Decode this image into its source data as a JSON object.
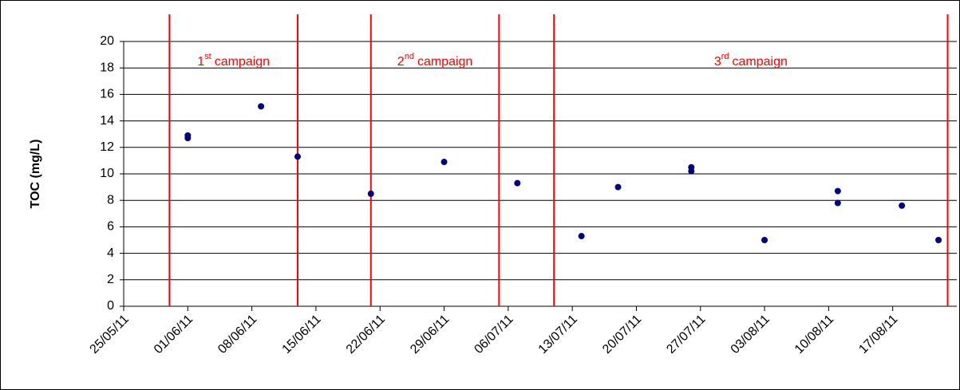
{
  "chart_data": {
    "type": "scatter",
    "y_label": "TOC (mg/L)",
    "ylim": [
      0,
      20
    ],
    "yticks": [
      0,
      2,
      4,
      6,
      8,
      10,
      12,
      14,
      16,
      18,
      20
    ],
    "xlim": [
      "25/05/11",
      "24/08/11"
    ],
    "xticks": [
      "25/05/11",
      "01/06/11",
      "08/06/11",
      "15/06/11",
      "22/06/11",
      "29/06/11",
      "06/07/11",
      "13/07/11",
      "20/07/11",
      "27/07/11",
      "03/08/11",
      "10/08/11",
      "17/08/11"
    ],
    "grid": true,
    "series": [
      {
        "color": "#000080",
        "x": [
          "01/06/11",
          "01/06/11",
          "09/06/11",
          "13/06/11",
          "21/06/11",
          "29/06/11",
          "07/07/11",
          "14/07/11",
          "18/07/11",
          "26/07/11",
          "26/07/11",
          "03/08/11",
          "11/08/11",
          "11/08/11",
          "18/08/11",
          "22/08/11"
        ],
        "values": [
          12.9,
          12.7,
          15.1,
          11.3,
          8.5,
          10.9,
          9.3,
          5.3,
          9.0,
          10.5,
          10.2,
          5.0,
          8.7,
          7.8,
          7.6,
          5.0
        ]
      }
    ],
    "campaign_lines": {
      "color": "#ff0000",
      "x": [
        "30/05/11",
        "13/06/11",
        "21/06/11",
        "05/07/11",
        "11/07/11",
        "23/08/11"
      ]
    },
    "annotations": [
      {
        "number": "1",
        "suffix": "st",
        "text": "campaign"
      },
      {
        "number": "2",
        "suffix": "nd",
        "text": "campaign"
      },
      {
        "number": "3",
        "suffix": "rd",
        "text": "campaign"
      }
    ]
  }
}
